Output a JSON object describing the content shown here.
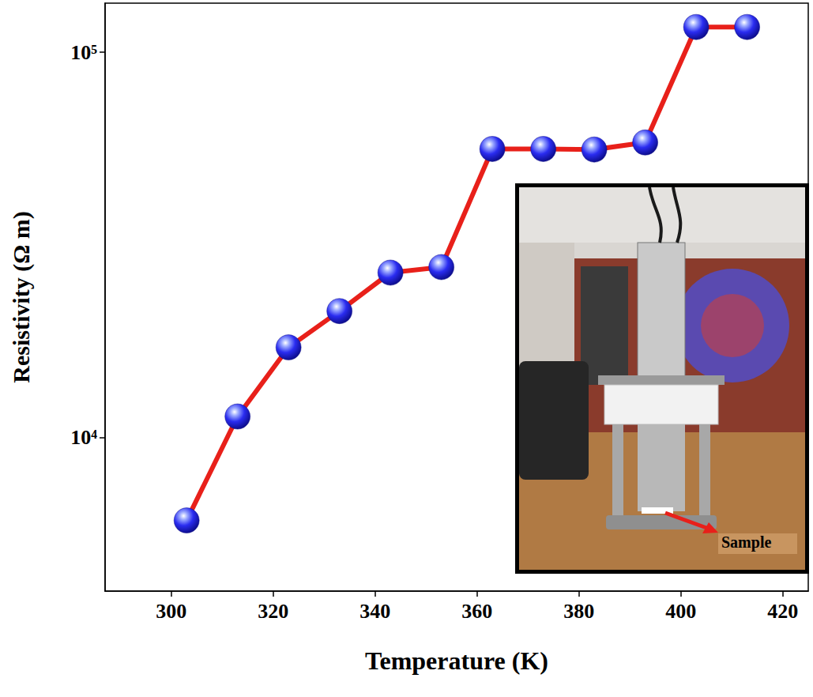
{
  "chart_data": {
    "type": "line",
    "x_label": "Temperature (K)",
    "y_label": "Resistivity (Ω m)",
    "x": [
      303,
      313,
      323,
      333,
      343,
      353,
      363,
      373,
      383,
      393,
      403,
      413
    ],
    "values": [
      6100,
      11350,
      17150,
      21300,
      26800,
      27700,
      56100,
      56100,
      55900,
      58300,
      116200,
      116200
    ],
    "color": "#e8201a",
    "marker": "circle",
    "line_style": "solid",
    "log": "y",
    "grid": false,
    "xlim": [
      287,
      425
    ],
    "xticks": [
      300,
      320,
      340,
      360,
      380,
      400,
      420
    ],
    "ylim": [
      4000,
      134000
    ],
    "yticks": [
      {
        "value": 10000,
        "label": "10⁴"
      },
      {
        "value": 100000,
        "label": "10⁵"
      }
    ],
    "inset_label": "Sample"
  }
}
